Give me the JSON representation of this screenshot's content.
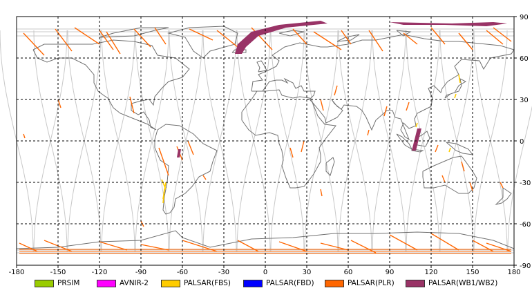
{
  "map": {
    "lon_ticks": [
      "-180",
      "-150",
      "-120",
      "-90",
      "-60",
      "-30",
      "0",
      "30",
      "60",
      "90",
      "120",
      "150",
      "180"
    ],
    "lat_ticks": [
      "90",
      "60",
      "30",
      "0",
      "-30",
      "-60",
      "-90"
    ],
    "colors": {
      "coast": "#707070",
      "orbit": "#c8c8c8",
      "grid": "#000000",
      "plr": "#ff6600",
      "fbs": "#ffcc00",
      "wb": "#993366"
    }
  },
  "legend": [
    {
      "label": "PRSIM",
      "color": "#99cc00"
    },
    {
      "label": "AVNIR-2",
      "color": "#ff00ff"
    },
    {
      "label": "PALSAR(FBS)",
      "color": "#ffcc00"
    },
    {
      "label": "PALSAR(FBD)",
      "color": "#0000ff"
    },
    {
      "label": "PALSAR(PLR)",
      "color": "#ff6600"
    },
    {
      "label": "PALSAR(WB1/WB2)",
      "color": "#993366"
    }
  ]
}
